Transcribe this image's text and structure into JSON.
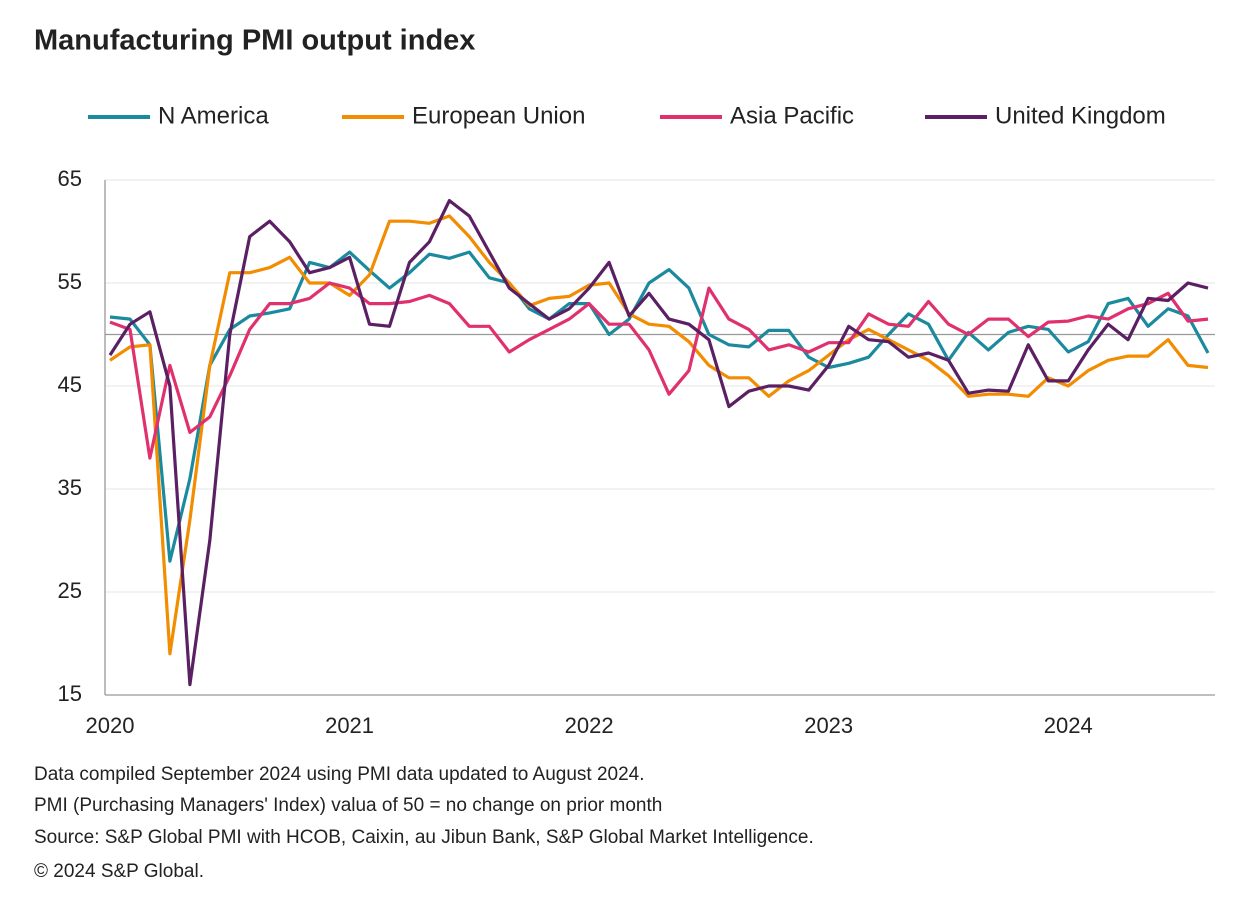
{
  "chart_data": {
    "type": "line",
    "title": "Manufacturing PMI output index",
    "categories": [
      "2020",
      null,
      null,
      null,
      null,
      null,
      null,
      null,
      null,
      null,
      null,
      null,
      "2021",
      null,
      null,
      null,
      null,
      null,
      null,
      null,
      null,
      null,
      null,
      null,
      "2022",
      null,
      null,
      null,
      null,
      null,
      null,
      null,
      null,
      null,
      null,
      null,
      "2023",
      null,
      null,
      null,
      null,
      null,
      null,
      null,
      null,
      null,
      null,
      null,
      "2024",
      null,
      null,
      null,
      null,
      null,
      null,
      null
    ],
    "series": [
      {
        "name": "N America",
        "color": "#1b8a9e",
        "values": [
          51.7,
          51.5,
          49.0,
          28.0,
          36,
          47,
          50.5,
          51.8,
          52.1,
          52.5,
          57,
          56.5,
          58,
          56.2,
          54.5,
          56,
          57.8,
          57.4,
          58,
          55.5,
          55,
          52.5,
          51.5,
          53,
          53,
          50,
          51.5,
          55,
          56.3,
          54.5,
          50,
          49,
          48.8,
          50.4,
          50.4,
          47.8,
          46.8,
          47.2,
          47.8,
          50,
          52,
          51,
          47.5,
          50.2,
          48.5,
          50.2,
          50.8,
          50.5,
          48.3,
          49.3,
          53,
          53.5,
          50.8,
          52.5,
          51.8,
          48.2
        ]
      },
      {
        "name": "European Union",
        "color": "#f28c00",
        "values": [
          47.5,
          48.8,
          49,
          19,
          32,
          47,
          56,
          56,
          56.5,
          57.5,
          55,
          55,
          53.8,
          55.8,
          61,
          61,
          60.8,
          61.5,
          59.5,
          57,
          55,
          52.8,
          53.5,
          53.7,
          54.8,
          55,
          52,
          51,
          50.8,
          49.3,
          47,
          45.8,
          45.8,
          44,
          45.5,
          46.5,
          48,
          49.5,
          50.5,
          49.5,
          48.5,
          47.5,
          46,
          44,
          44.2,
          44.2,
          44,
          45.8,
          45,
          46.5,
          47.5,
          47.9,
          47.9,
          49.5,
          47,
          46.8
        ]
      },
      {
        "name": "Asia Pacific",
        "color": "#e0306e",
        "values": [
          51.2,
          50.5,
          38,
          47,
          40.5,
          42,
          46,
          50.5,
          53,
          53,
          53.5,
          55,
          54.5,
          53,
          53,
          53.2,
          53.8,
          53,
          50.8,
          50.8,
          48.3,
          49.5,
          50.5,
          51.5,
          53,
          51,
          51,
          48.5,
          44.2,
          46.5,
          54.5,
          51.5,
          50.5,
          48.5,
          49,
          48.3,
          49.2,
          49.2,
          52,
          51,
          50.8,
          53.2,
          51,
          50,
          51.5,
          51.5,
          49.8,
          51.2,
          51.3,
          51.8,
          51.5,
          52.5,
          53,
          54,
          51.3,
          51.5
        ]
      },
      {
        "name": "United Kingdom",
        "color": "#5b2063",
        "values": [
          48,
          51,
          52.2,
          45,
          16,
          30,
          50,
          59.5,
          61,
          59,
          56,
          56.5,
          57.5,
          51,
          50.8,
          57,
          59,
          63,
          61.5,
          58,
          54.5,
          53,
          51.5,
          52.5,
          54.5,
          57,
          51.8,
          54,
          51.5,
          51,
          49.5,
          43,
          44.5,
          45,
          45,
          44.6,
          47,
          50.8,
          49.5,
          49.3,
          47.8,
          48.2,
          47.5,
          44.3,
          44.6,
          44.5,
          49,
          45.5,
          45.5,
          48.5,
          51,
          49.5,
          53.5,
          53.3,
          55,
          54.5
        ]
      }
    ],
    "ylim": [
      15,
      65
    ],
    "yticks": [
      15,
      25,
      35,
      45,
      55,
      65
    ],
    "grid": true,
    "reference_line": 50,
    "legend": "top",
    "footnotes": [
      "Data compiled September 2024 using PMI data updated to August 2024.",
      "PMI (Purchasing Managers' Index) valua of 50 = no change on prior month",
      "Source: S&P Global PMI with HCOB, Caixin, au Jibun Bank, S&P Global Market Intelligence.",
      "© 2024 S&P Global."
    ]
  }
}
